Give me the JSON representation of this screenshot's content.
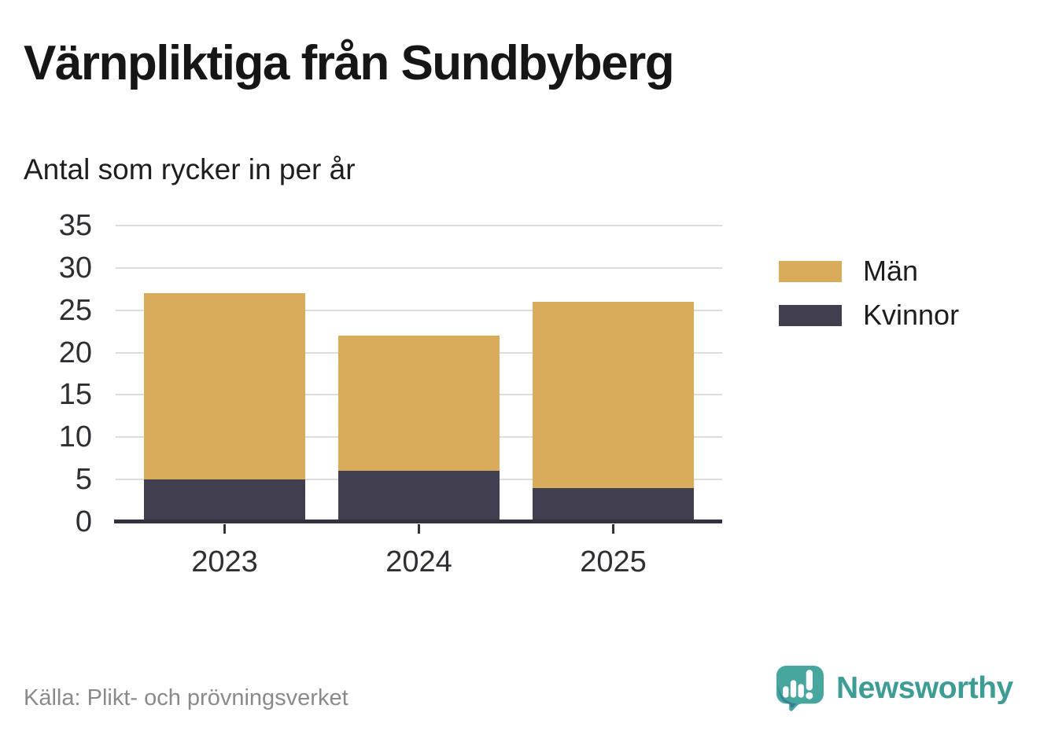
{
  "title": "Värnpliktiga från Sundbyberg",
  "subtitle": "Antal som rycker in per år",
  "source": "Källa: Plikt- och prövningsverket",
  "brand": {
    "name": "Newsworthy",
    "icon": "speech-bubble-with-bar-chart-and-exclamation",
    "mark_color": "#47a79e",
    "mark_shade_color": "#3a7f97",
    "text_color": "#3d9c94"
  },
  "colors": {
    "bar_men": "#d9ac5b",
    "bar_women": "#413f4f",
    "gridline": "#dcdcdc",
    "axis_line": "#33323e",
    "tick_text": "#2f2f33",
    "title_text": "#161616",
    "muted_text": "#8a8a8a",
    "background": "#ffffff"
  },
  "chart_data": {
    "type": "bar",
    "stacked": true,
    "title": "Värnpliktiga från Sundbyberg",
    "subtitle": "Antal som rycker in per år",
    "categories": [
      "2023",
      "2024",
      "2025"
    ],
    "series": [
      {
        "name": "Män",
        "color": "#d9ac5b",
        "values": [
          22,
          16,
          22
        ]
      },
      {
        "name": "Kvinnor",
        "color": "#413f4f",
        "values": [
          5,
          6,
          4
        ]
      }
    ],
    "stack_order_bottom_to_top": [
      "Kvinnor",
      "Män"
    ],
    "stack_totals": [
      27,
      22,
      26
    ],
    "xlabel": "",
    "ylabel": "",
    "ylim": [
      0,
      35
    ],
    "yticks": [
      0,
      5,
      10,
      15,
      20,
      25,
      30,
      35
    ],
    "grid": true,
    "legend_position": "right"
  }
}
